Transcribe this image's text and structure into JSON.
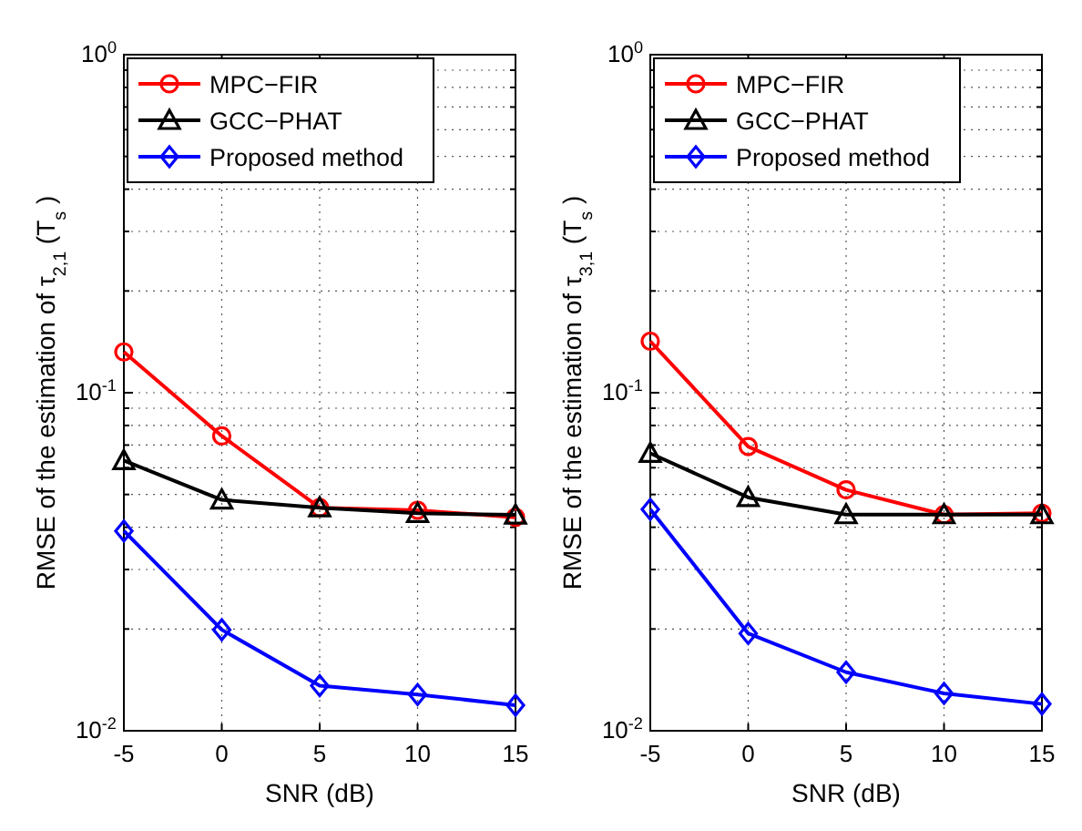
{
  "chart_data": [
    {
      "type": "line",
      "xlabel": "SNR (dB)",
      "ylabel": "RMSE of the estimation of τ$_{2,1}$ (T$_{s}$)",
      "x": [
        -5,
        0,
        5,
        10,
        15
      ],
      "xlim": [
        -5,
        15
      ],
      "xticks": [
        -5,
        0,
        5,
        10,
        15
      ],
      "ylim": [
        0.01,
        1
      ],
      "log": "y",
      "grid": true,
      "legend": "top left",
      "yticks": [
        {
          "value": 0.01,
          "label": "10$^{-2}$"
        },
        {
          "value": 0.02,
          "label": null
        },
        {
          "value": 0.03,
          "label": null
        },
        {
          "value": 0.04,
          "label": null
        },
        {
          "value": 0.05,
          "label": null
        },
        {
          "value": 0.06,
          "label": null
        },
        {
          "value": 0.07,
          "label": null
        },
        {
          "value": 0.08,
          "label": null
        },
        {
          "value": 0.09,
          "label": null
        },
        {
          "value": 0.1,
          "label": "10$^{-1}$"
        },
        {
          "value": 0.2,
          "label": null
        },
        {
          "value": 0.3,
          "label": null
        },
        {
          "value": 0.4,
          "label": null
        },
        {
          "value": 0.5,
          "label": null
        },
        {
          "value": 0.6,
          "label": null
        },
        {
          "value": 0.7,
          "label": null
        },
        {
          "value": 0.8,
          "label": null
        },
        {
          "value": 0.9,
          "label": null
        },
        {
          "value": 1,
          "label": "10$^{0}$"
        }
      ],
      "series": [
        {
          "name": "MPC−FIR",
          "color": "#ff0000",
          "marker": "circle",
          "values": [
            0.132,
            0.0745,
            0.0457,
            0.0449,
            0.0428
          ]
        },
        {
          "name": "GCC−PHAT",
          "color": "#000000",
          "marker": "triangle",
          "values": [
            0.063,
            0.0482,
            0.0457,
            0.044,
            0.0435
          ]
        },
        {
          "name": "Proposed method",
          "color": "#0000ff",
          "marker": "diamond",
          "values": [
            0.039,
            0.0199,
            0.0136,
            0.0128,
            0.0119
          ]
        }
      ]
    },
    {
      "type": "line",
      "xlabel": "SNR (dB)",
      "ylabel": "RMSE of the estimation of τ$_{3,1}$ (T$_{s}$)",
      "x": [
        -5,
        0,
        5,
        10,
        15
      ],
      "xlim": [
        -5,
        15
      ],
      "xticks": [
        -5,
        0,
        5,
        10,
        15
      ],
      "ylim": [
        0.01,
        1
      ],
      "log": "y",
      "grid": true,
      "legend": "top left",
      "yticks": [
        {
          "value": 0.01,
          "label": "10$^{-2}$"
        },
        {
          "value": 0.02,
          "label": null
        },
        {
          "value": 0.03,
          "label": null
        },
        {
          "value": 0.04,
          "label": null
        },
        {
          "value": 0.05,
          "label": null
        },
        {
          "value": 0.06,
          "label": null
        },
        {
          "value": 0.07,
          "label": null
        },
        {
          "value": 0.08,
          "label": null
        },
        {
          "value": 0.09,
          "label": null
        },
        {
          "value": 0.1,
          "label": "10$^{-1}$"
        },
        {
          "value": 0.2,
          "label": null
        },
        {
          "value": 0.3,
          "label": null
        },
        {
          "value": 0.4,
          "label": null
        },
        {
          "value": 0.5,
          "label": null
        },
        {
          "value": 0.6,
          "label": null
        },
        {
          "value": 0.7,
          "label": null
        },
        {
          "value": 0.8,
          "label": null
        },
        {
          "value": 0.9,
          "label": null
        },
        {
          "value": 1,
          "label": "10$^{0}$"
        }
      ],
      "series": [
        {
          "name": "MPC−FIR",
          "color": "#ff0000",
          "marker": "circle",
          "values": [
            0.142,
            0.0693,
            0.0516,
            0.0436,
            0.044
          ]
        },
        {
          "name": "GCC−PHAT",
          "color": "#000000",
          "marker": "triangle",
          "values": [
            0.0662,
            0.049,
            0.0436,
            0.0436,
            0.0436
          ]
        },
        {
          "name": "Proposed method",
          "color": "#0000ff",
          "marker": "diamond",
          "values": [
            0.0452,
            0.0194,
            0.0149,
            0.0129,
            0.012
          ]
        }
      ]
    }
  ]
}
